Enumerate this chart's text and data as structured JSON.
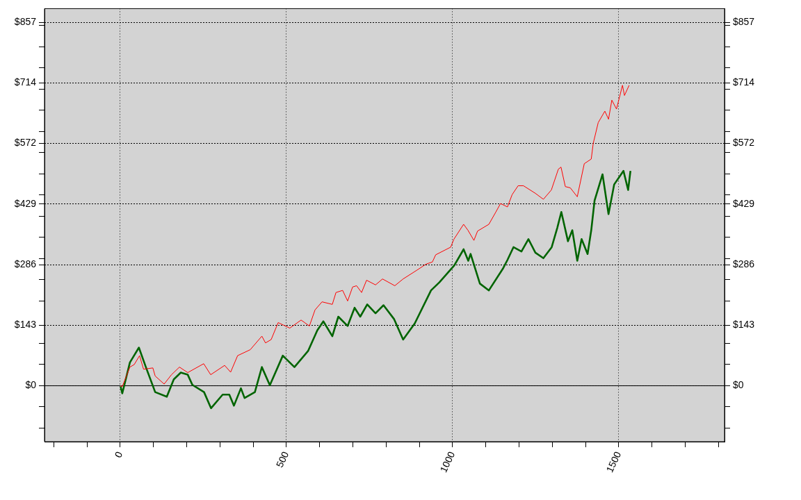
{
  "chart_data": {
    "type": "line",
    "xlim": [
      -228,
      1818
    ],
    "xticks": [
      {
        "value": -200,
        "label": null
      },
      {
        "value": -100,
        "label": null
      },
      0,
      {
        "value": 100,
        "label": null
      },
      {
        "value": 200,
        "label": null
      },
      {
        "value": 300,
        "label": null
      },
      {
        "value": 400,
        "label": null
      },
      500,
      {
        "value": 600,
        "label": null
      },
      {
        "value": 700,
        "label": null
      },
      {
        "value": 800,
        "label": null
      },
      {
        "value": 900,
        "label": null
      },
      1000,
      {
        "value": 1100,
        "label": null
      },
      {
        "value": 1200,
        "label": null
      },
      {
        "value": 1300,
        "label": null
      },
      {
        "value": 1400,
        "label": null
      },
      1500,
      {
        "value": 1600,
        "label": null
      },
      {
        "value": 1700,
        "label": null
      },
      {
        "value": 1800,
        "label": null
      }
    ],
    "ylim": [
      -132,
      890
    ],
    "yticks": [
      {
        "value": -100,
        "label": null
      },
      {
        "value": -50,
        "label": null
      },
      {
        "value": 0,
        "label": "$0"
      },
      {
        "value": 50,
        "label": null
      },
      {
        "value": 100,
        "label": null
      },
      {
        "value": 142.857,
        "label": "$143"
      },
      {
        "value": 200,
        "label": null
      },
      {
        "value": 250,
        "label": null
      },
      {
        "value": 285.714,
        "label": "$286"
      },
      {
        "value": 300,
        "label": null
      },
      {
        "value": 350,
        "label": null
      },
      {
        "value": 400,
        "label": null
      },
      {
        "value": 428.571,
        "label": "$429"
      },
      {
        "value": 450,
        "label": null
      },
      {
        "value": 500,
        "label": null
      },
      {
        "value": 550,
        "label": null
      },
      {
        "value": 572,
        "label": "$572"
      },
      {
        "value": 600,
        "label": null
      },
      {
        "value": 650,
        "label": null
      },
      {
        "value": 700,
        "label": null
      },
      {
        "value": 714.286,
        "label": "$714"
      },
      {
        "value": 750,
        "label": null
      },
      {
        "value": 800,
        "label": null
      },
      {
        "value": 850,
        "label": null
      },
      {
        "value": 857.143,
        "label": "$857"
      }
    ],
    "y2lim": [
      -132,
      890
    ],
    "y2ticks": [
      {
        "value": -100,
        "label": null
      },
      {
        "value": -50,
        "label": null
      },
      {
        "value": 0,
        "label": "$0"
      },
      {
        "value": 50,
        "label": null
      },
      {
        "value": 100,
        "label": null
      },
      {
        "value": 142.857,
        "label": "$143"
      },
      {
        "value": 200,
        "label": null
      },
      {
        "value": 250,
        "label": null
      },
      {
        "value": 285.714,
        "label": "$286"
      },
      {
        "value": 300,
        "label": null
      },
      {
        "value": 350,
        "label": null
      },
      {
        "value": 400,
        "label": null
      },
      {
        "value": 428.571,
        "label": "$429"
      },
      {
        "value": 450,
        "label": null
      },
      {
        "value": 500,
        "label": null
      },
      {
        "value": 550,
        "label": null
      },
      {
        "value": 572,
        "label": "$572"
      },
      {
        "value": 600,
        "label": null
      },
      {
        "value": 650,
        "label": null
      },
      {
        "value": 700,
        "label": null
      },
      {
        "value": 714.286,
        "label": "$714"
      },
      {
        "value": 750,
        "label": null
      },
      {
        "value": 800,
        "label": null
      },
      {
        "value": 850,
        "label": null
      },
      {
        "value": 857.143,
        "label": "$857"
      }
    ],
    "grid": true,
    "legend": false,
    "marker": "none",
    "line_style": "solid",
    "ref_lines": [
      {
        "axis": "y",
        "value": 0,
        "color": "#000000",
        "line_style": "solid"
      }
    ],
    "series": [
      {
        "color": "#ff0000",
        "x": [
          0,
          6,
          29,
          42,
          58,
          70,
          98,
          105,
          132,
          154,
          178,
          203,
          251,
          272,
          314,
          332,
          353,
          391,
          426,
          437,
          454,
          475,
          510,
          544,
          569,
          586,
          607,
          638,
          649,
          669,
          684,
          699,
          711,
          726,
          741,
          768,
          789,
          826,
          851,
          893,
          920,
          939,
          949,
          994,
          1004,
          1033,
          1046,
          1064,
          1075,
          1109,
          1130,
          1144,
          1165,
          1179,
          1197,
          1213,
          1249,
          1273,
          1297,
          1318,
          1326,
          1339,
          1354,
          1375,
          1396,
          1417,
          1423,
          1438,
          1458,
          1469,
          1479,
          1493,
          1511,
          1517,
          1531
        ],
        "values": [
          0,
          -2,
          44,
          50,
          71,
          39,
          42,
          23,
          4,
          26,
          44,
          31,
          52,
          26,
          48,
          32,
          71,
          85,
          117,
          101,
          109,
          149,
          136,
          155,
          141,
          179,
          198,
          192,
          220,
          225,
          200,
          233,
          236,
          220,
          249,
          238,
          252,
          236,
          252,
          273,
          287,
          292,
          309,
          327,
          346,
          381,
          367,
          343,
          365,
          381,
          410,
          430,
          422,
          451,
          472,
          472,
          454,
          440,
          462,
          511,
          516,
          470,
          467,
          446,
          524,
          535,
          572,
          621,
          648,
          629,
          674,
          653,
          709,
          685,
          709
        ]
      },
      {
        "color": "#006400",
        "x": [
          1,
          6,
          29,
          56,
          77,
          105,
          140,
          161,
          182,
          203,
          217,
          252,
          273,
          308,
          328,
          342,
          363,
          374,
          405,
          426,
          450,
          489,
          524,
          565,
          593,
          611,
          638,
          656,
          684,
          705,
          722,
          743,
          768,
          792,
          824,
          851,
          886,
          935,
          960,
          1005,
          1033,
          1047,
          1054,
          1082,
          1109,
          1151,
          1165,
          1183,
          1207,
          1228,
          1249,
          1273,
          1298,
          1315,
          1327,
          1347,
          1360,
          1375,
          1388,
          1406,
          1417,
          1427,
          1451,
          1469,
          1486,
          1514,
          1528,
          1535
        ],
        "values": [
          -2,
          -18,
          55,
          90,
          44,
          -15,
          -26,
          15,
          31,
          26,
          2,
          -15,
          -53,
          -21,
          -21,
          -47,
          -6,
          -29,
          -15,
          44,
          1,
          71,
          44,
          82,
          131,
          152,
          117,
          163,
          141,
          184,
          163,
          192,
          171,
          190,
          157,
          109,
          147,
          225,
          244,
          284,
          322,
          295,
          311,
          241,
          225,
          276,
          297,
          327,
          317,
          346,
          314,
          301,
          327,
          373,
          410,
          341,
          367,
          295,
          346,
          311,
          367,
          437,
          499,
          405,
          475,
          507,
          462,
          507
        ]
      }
    ]
  }
}
